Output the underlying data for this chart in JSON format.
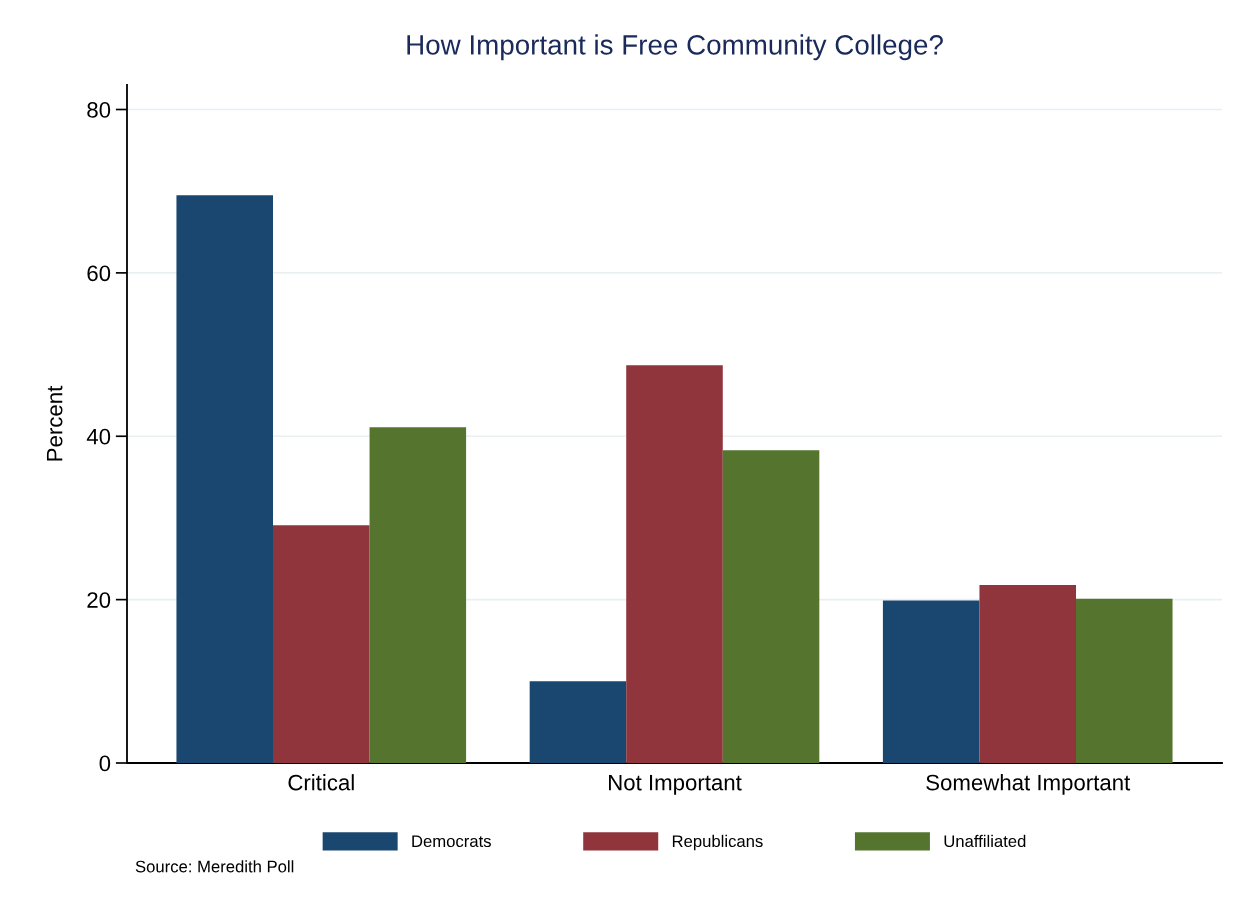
{
  "chart_data": {
    "type": "bar",
    "title": "How Important is Free Community College?",
    "ylabel": "Percent",
    "categories": [
      "Critical",
      "Not Important",
      "Somewhat Important"
    ],
    "series": [
      {
        "name": "Democrats",
        "color": "#1a476f",
        "values": [
          69.5,
          10.0,
          19.9
        ]
      },
      {
        "name": "Republicans",
        "color": "#90353b",
        "values": [
          29.1,
          48.7,
          21.8
        ]
      },
      {
        "name": "Unaffiliated",
        "color": "#55752f",
        "values": [
          41.1,
          38.3,
          20.1
        ]
      }
    ],
    "ylim": [
      0,
      83
    ],
    "yticks": [
      0,
      20,
      40,
      60,
      80
    ],
    "grid": "y",
    "legend": "bottom",
    "annotations": [
      "Source: Meredith Poll"
    ]
  }
}
